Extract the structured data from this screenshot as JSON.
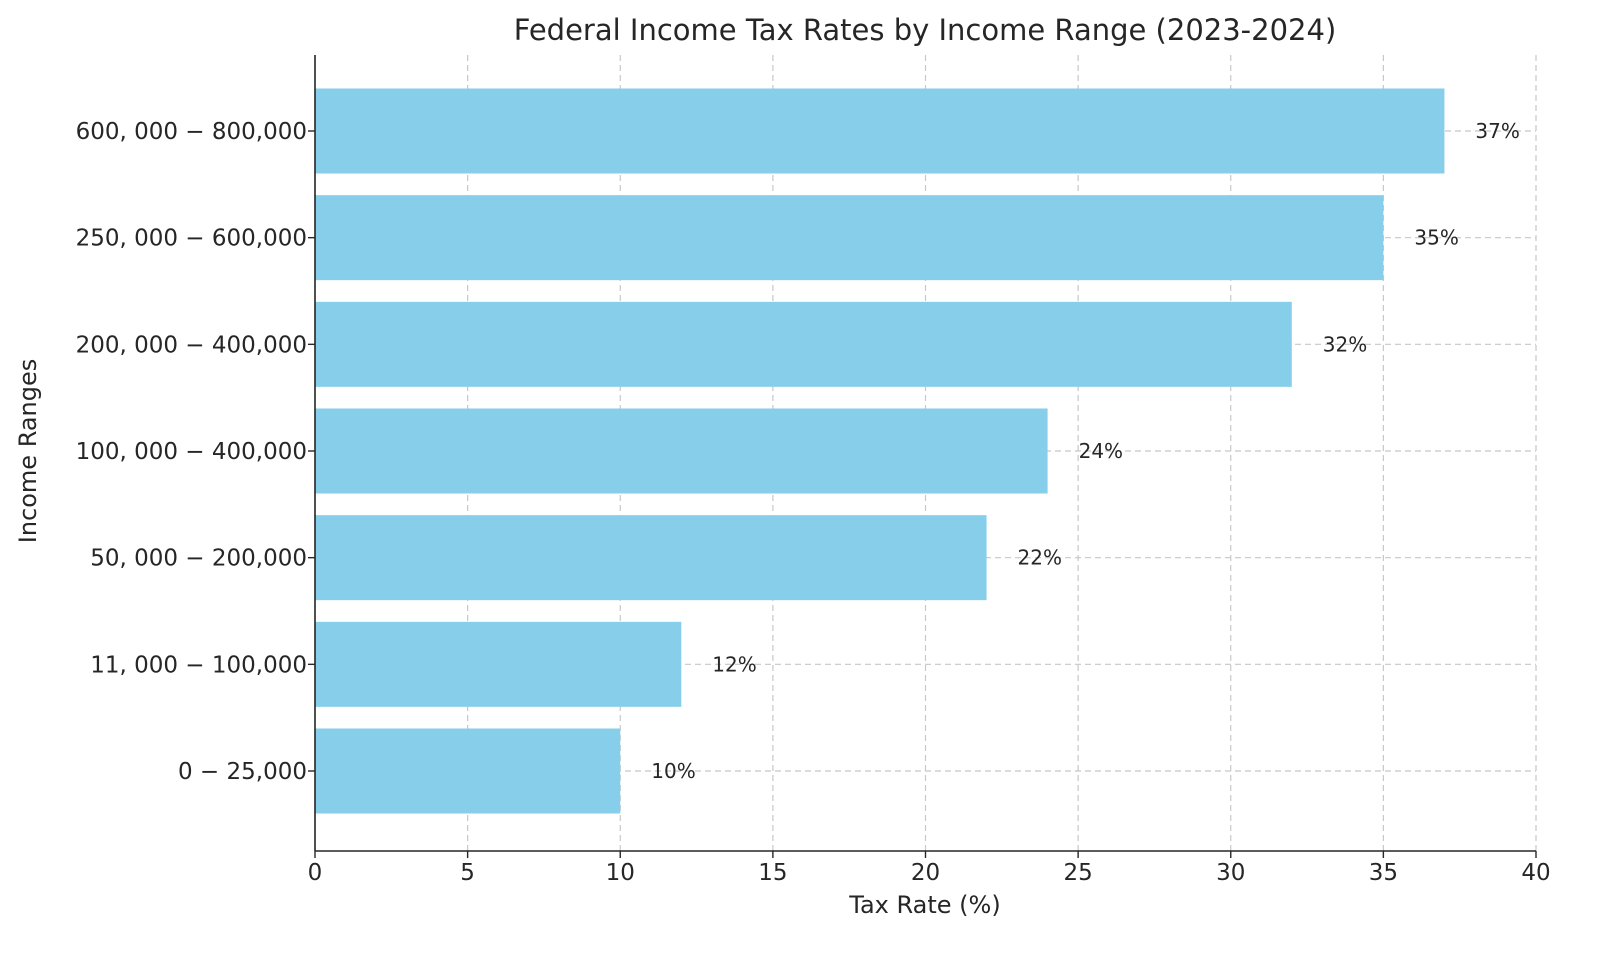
{
  "chart_data": {
    "type": "bar",
    "orientation": "horizontal",
    "title": "Federal Income Tax Rates by Income Range (2023-2024)",
    "xlabel": "Tax Rate (%)",
    "ylabel": "Income Ranges",
    "xlim": [
      0,
      40
    ],
    "xticks": [
      0,
      5,
      10,
      15,
      20,
      25,
      30,
      35,
      40
    ],
    "grid": true,
    "bar_color": "#87CEEB",
    "categories": [
      "0 − 25,000",
      "11, 000 − 100,000",
      "50, 000 − 200,000",
      "100, 000 − 400,000",
      "200, 000 − 400,000",
      "250, 000 − 600,000",
      "600, 000 − 800,000"
    ],
    "values": [
      10,
      12,
      22,
      24,
      32,
      35,
      37
    ],
    "data_labels": [
      "10%",
      "12%",
      "22%",
      "24%",
      "32%",
      "35%",
      "37%"
    ]
  }
}
